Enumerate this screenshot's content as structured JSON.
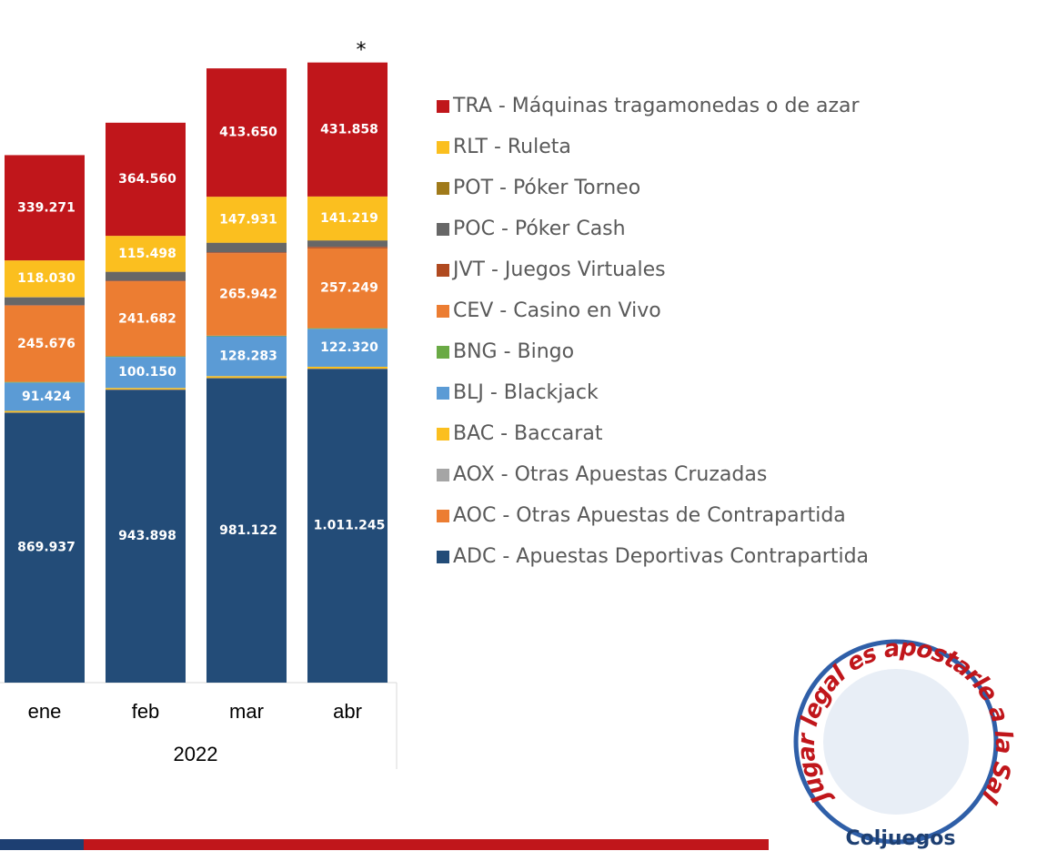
{
  "chart_data": {
    "type": "stacked_bar",
    "categories": [
      "ene",
      "feb",
      "mar",
      "abr"
    ],
    "x_group_label": "2022",
    "annotation": "*",
    "ylim": [
      0,
      2200000
    ],
    "series": [
      {
        "name": "ADC - Apuestas Deportivas Contrapartida",
        "color": "#234c78",
        "values": [
          869937,
          943898,
          981122,
          1011245
        ],
        "value_labels": [
          "869.937",
          "943.898",
          "981.122",
          "1.011.245"
        ]
      },
      {
        "name": "AOC - Otras Apuestas de Contrapartida",
        "color": "#ec7d32",
        "values": [
          500,
          500,
          500,
          500
        ],
        "value_labels": [
          null,
          null,
          null,
          null
        ]
      },
      {
        "name": "AOX - Otras Apuestas Cruzadas",
        "color": "#a5a5a5",
        "values": [
          200,
          200,
          200,
          200
        ],
        "value_labels": [
          null,
          null,
          null,
          null
        ]
      },
      {
        "name": "BAC - Baccarat",
        "color": "#fbbf1f",
        "values": [
          5000,
          5000,
          6000,
          6000
        ],
        "value_labels": [
          null,
          null,
          null,
          null
        ]
      },
      {
        "name": "BLJ - Blackjack",
        "color": "#5b9bd5",
        "values": [
          91424,
          100150,
          128283,
          122320
        ],
        "value_labels": [
          "91.424",
          "100.150",
          "128.283",
          "122.320"
        ]
      },
      {
        "name": "BNG - Bingo",
        "color": "#6aaa45",
        "values": [
          2000,
          2000,
          2000,
          2000
        ],
        "value_labels": [
          null,
          null,
          null,
          null
        ]
      },
      {
        "name": "CEV - Casino en Vivo",
        "color": "#ec7d32",
        "values": [
          245676,
          241682,
          265942,
          257249
        ],
        "value_labels": [
          "245.676",
          "241.682",
          "265.942",
          "257.249"
        ]
      },
      {
        "name": "JVT - Juegos Virtuales",
        "color": "#b04a20",
        "values": [
          2000,
          2000,
          3000,
          5000
        ],
        "value_labels": [
          null,
          null,
          null,
          null
        ]
      },
      {
        "name": "POC - Póker Cash",
        "color": "#676767",
        "values": [
          25000,
          28000,
          30000,
          20000
        ],
        "value_labels": [
          null,
          null,
          null,
          null
        ]
      },
      {
        "name": "POT - Póker Torneo",
        "color": "#a07a1a",
        "values": [
          1000,
          1000,
          1000,
          1000
        ],
        "value_labels": [
          null,
          null,
          null,
          null
        ]
      },
      {
        "name": "RLT - Ruleta",
        "color": "#fbbf1f",
        "values": [
          118030,
          115498,
          147931,
          141219
        ],
        "value_labels": [
          "118.030",
          "115.498",
          "147.931",
          "141.219"
        ]
      },
      {
        "name": "TRA - Máquinas tragamonedas o de azar",
        "color": "#c0161b",
        "values": [
          339271,
          364560,
          413650,
          431858
        ],
        "value_labels": [
          "339.271",
          "364.560",
          "413.650",
          "431.858"
        ]
      }
    ]
  },
  "logo": {
    "slogan": "Jugar legal es apostarle a la Salud",
    "brand": "Coljuegos"
  }
}
